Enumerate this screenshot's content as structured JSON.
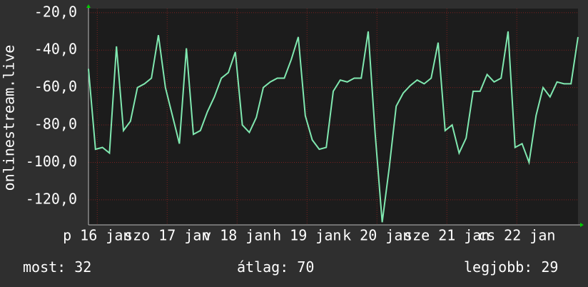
{
  "chart_data": {
    "type": "line",
    "y_label": "onlinestream.live",
    "x": [
      0,
      0.1,
      0.2,
      0.3,
      0.4,
      0.5,
      0.6,
      0.7,
      0.8,
      0.9,
      1,
      1.1,
      1.2,
      1.3,
      1.4,
      1.5,
      1.6,
      1.7,
      1.8,
      1.9,
      2,
      2.1,
      2.2,
      2.3,
      2.4,
      2.5,
      2.6,
      2.7,
      2.8,
      2.9,
      3,
      3.1,
      3.2,
      3.3,
      3.4,
      3.5,
      3.6,
      3.7,
      3.8,
      3.9,
      4,
      4.1,
      4.2,
      4.3,
      4.4,
      4.5,
      4.6,
      4.7,
      4.8,
      4.9,
      5,
      5.1,
      5.2,
      5.3,
      5.4,
      5.5,
      5.6,
      5.7,
      5.8,
      5.9,
      6,
      6.1,
      6.2,
      6.3,
      6.4,
      6.5,
      6.6,
      6.7,
      6.8,
      6.9,
      7
    ],
    "series": [
      {
        "color": "#80e8b0",
        "values": [
          -50,
          -93,
          -92,
          -95,
          -38,
          -83,
          -78,
          -60,
          -58,
          -55,
          -32,
          -60,
          -75,
          -90,
          -39,
          -85,
          -83,
          -73,
          -65,
          -55,
          -52,
          -41,
          -80,
          -84,
          -76,
          -60,
          -57,
          -55,
          -55,
          -45,
          -33,
          -75,
          -88,
          -93,
          -92,
          -62,
          -56,
          -57,
          -55,
          -55,
          -30,
          -85,
          -132,
          -103,
          -70,
          -63,
          -59,
          -56,
          -58,
          -55,
          -36,
          -83,
          -80,
          -95,
          -87,
          -62,
          -62,
          -53,
          -57,
          -55,
          -30,
          -92,
          -90,
          -100,
          -75,
          -60,
          -65,
          -57,
          -58,
          -58,
          -33
        ]
      }
    ],
    "xlim": [
      0,
      7
    ],
    "xticks": [
      {
        "value": 0.125,
        "label": "p 16 jan"
      },
      {
        "value": 1.125,
        "label": "szo 17 jan"
      },
      {
        "value": 2.125,
        "label": "v 18 jan"
      },
      {
        "value": 3.125,
        "label": "h 19 jan"
      },
      {
        "value": 4.125,
        "label": "k 20 jan"
      },
      {
        "value": 5.125,
        "label": "sze 21 jan"
      },
      {
        "value": 6.125,
        "label": "cs 22 jan"
      }
    ],
    "ylim": [
      -133.4,
      -17.8
    ],
    "yticks": [
      {
        "value": -20,
        "label": "-20,0"
      },
      {
        "value": -40,
        "label": "-40,0"
      },
      {
        "value": -60,
        "label": "-60,0"
      },
      {
        "value": -80,
        "label": "-80,0"
      },
      {
        "value": -100,
        "label": "-100,0"
      },
      {
        "value": -120,
        "label": "-120,0"
      }
    ],
    "grid": true,
    "stats": [
      {
        "label": "most:",
        "value": 32
      },
      {
        "label": "átlag:",
        "value": 70
      },
      {
        "label": "legjobb:",
        "value": 29
      }
    ]
  }
}
